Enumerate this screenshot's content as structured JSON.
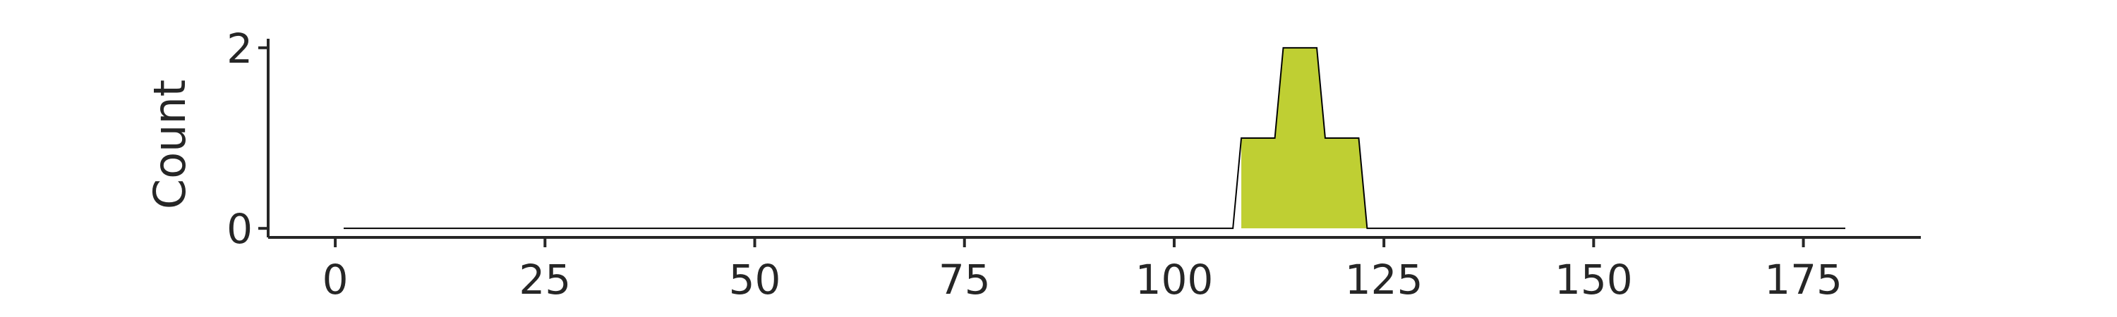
{
  "chart_data": {
    "type": "area",
    "title": "",
    "xlabel": "",
    "ylabel": "Count",
    "xlim": [
      -8,
      189
    ],
    "ylim": [
      -0.1,
      2.1
    ],
    "x_ticks": [
      0,
      25,
      50,
      75,
      100,
      125,
      150,
      175
    ],
    "x_tick_labels": [
      "0",
      "25",
      "50",
      "75",
      "100",
      "125",
      "150",
      "175"
    ],
    "y_ticks": [
      0,
      2
    ],
    "y_tick_labels": [
      "0",
      "2"
    ],
    "grid": false,
    "legend": "none",
    "fill_color": "#bfcf33",
    "series": [
      {
        "x": [
          1,
          107,
          108,
          112,
          113,
          117,
          118,
          122,
          123,
          180
        ],
        "y": [
          0,
          0,
          1,
          1,
          2,
          2,
          1,
          1,
          0,
          0
        ]
      }
    ],
    "highlight_range": [
      108,
      124
    ]
  }
}
